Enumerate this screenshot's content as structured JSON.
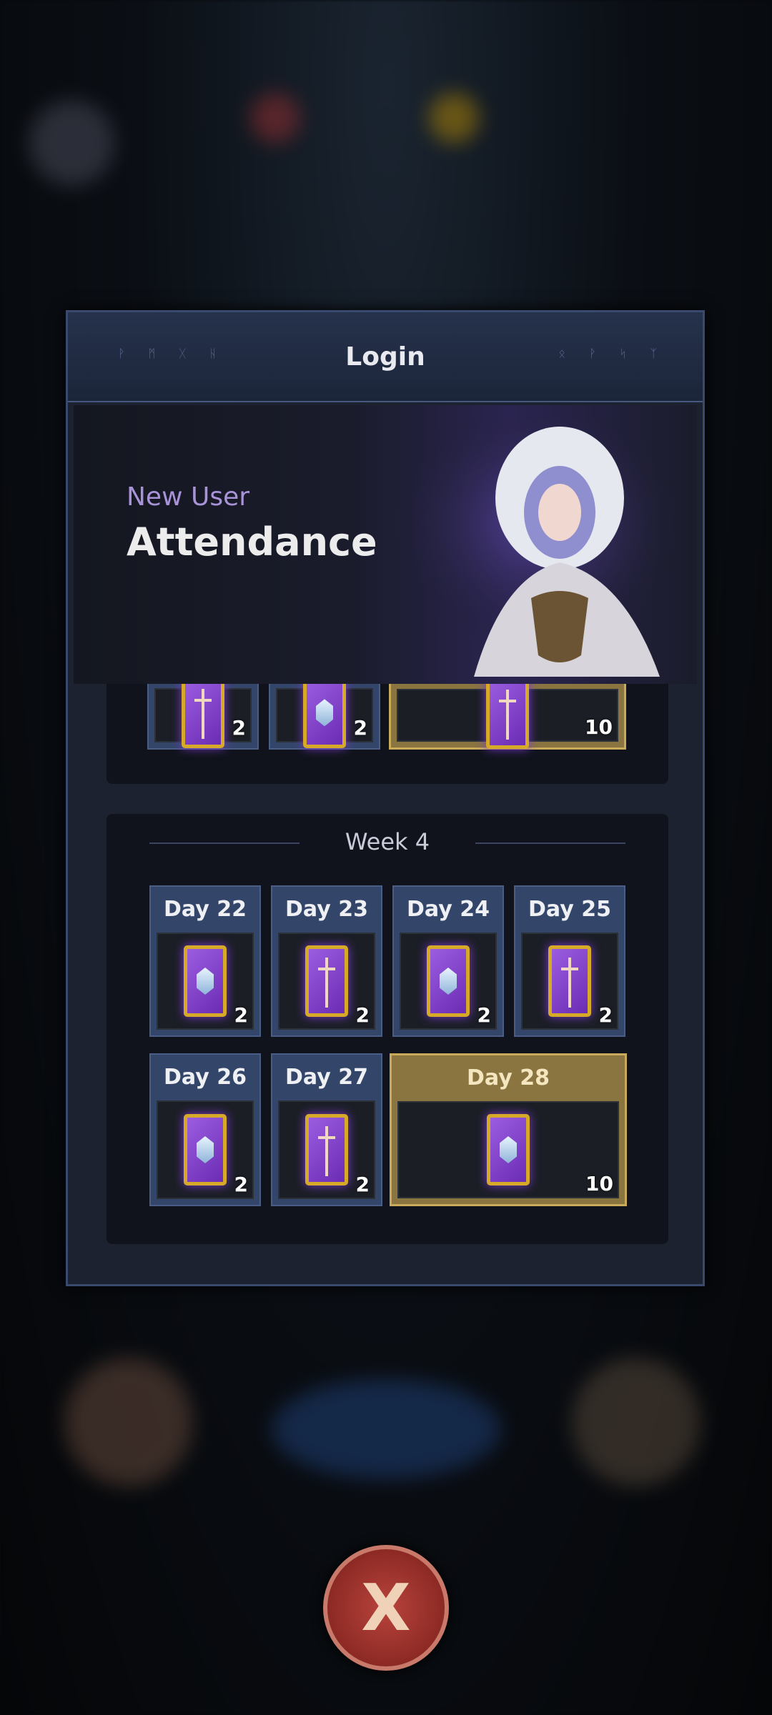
{
  "dialog": {
    "title": "Login",
    "runes_left": "ᚹ ᛗ ᚷ ᚺ",
    "runes_right": "ᛟ ᚹ ᛋ ᛉ"
  },
  "banner": {
    "subtitle": "New User",
    "title": "Attendance"
  },
  "partial_week": {
    "days": [
      {
        "qty": "2",
        "icon": "sword-card"
      },
      {
        "qty": "2",
        "icon": "gem-card"
      },
      {
        "qty": "10",
        "icon": "sword-card",
        "highlight": true
      }
    ]
  },
  "week4": {
    "title": "Week 4",
    "days": [
      {
        "label": "Day 22",
        "qty": "2",
        "icon": "gem-card"
      },
      {
        "label": "Day 23",
        "qty": "2",
        "icon": "sword-card"
      },
      {
        "label": "Day 24",
        "qty": "2",
        "icon": "gem-card"
      },
      {
        "label": "Day 25",
        "qty": "2",
        "icon": "sword-card"
      },
      {
        "label": "Day 26",
        "qty": "2",
        "icon": "gem-card"
      },
      {
        "label": "Day 27",
        "qty": "2",
        "icon": "sword-card"
      },
      {
        "label": "Day 28",
        "qty": "10",
        "icon": "gem-card",
        "highlight": true
      }
    ]
  },
  "close": {
    "label": "X"
  },
  "colors": {
    "panel": "#1c2230",
    "accent_gold": "#c9a95a",
    "subtitle": "#a892d8",
    "close": "#b8443c"
  }
}
